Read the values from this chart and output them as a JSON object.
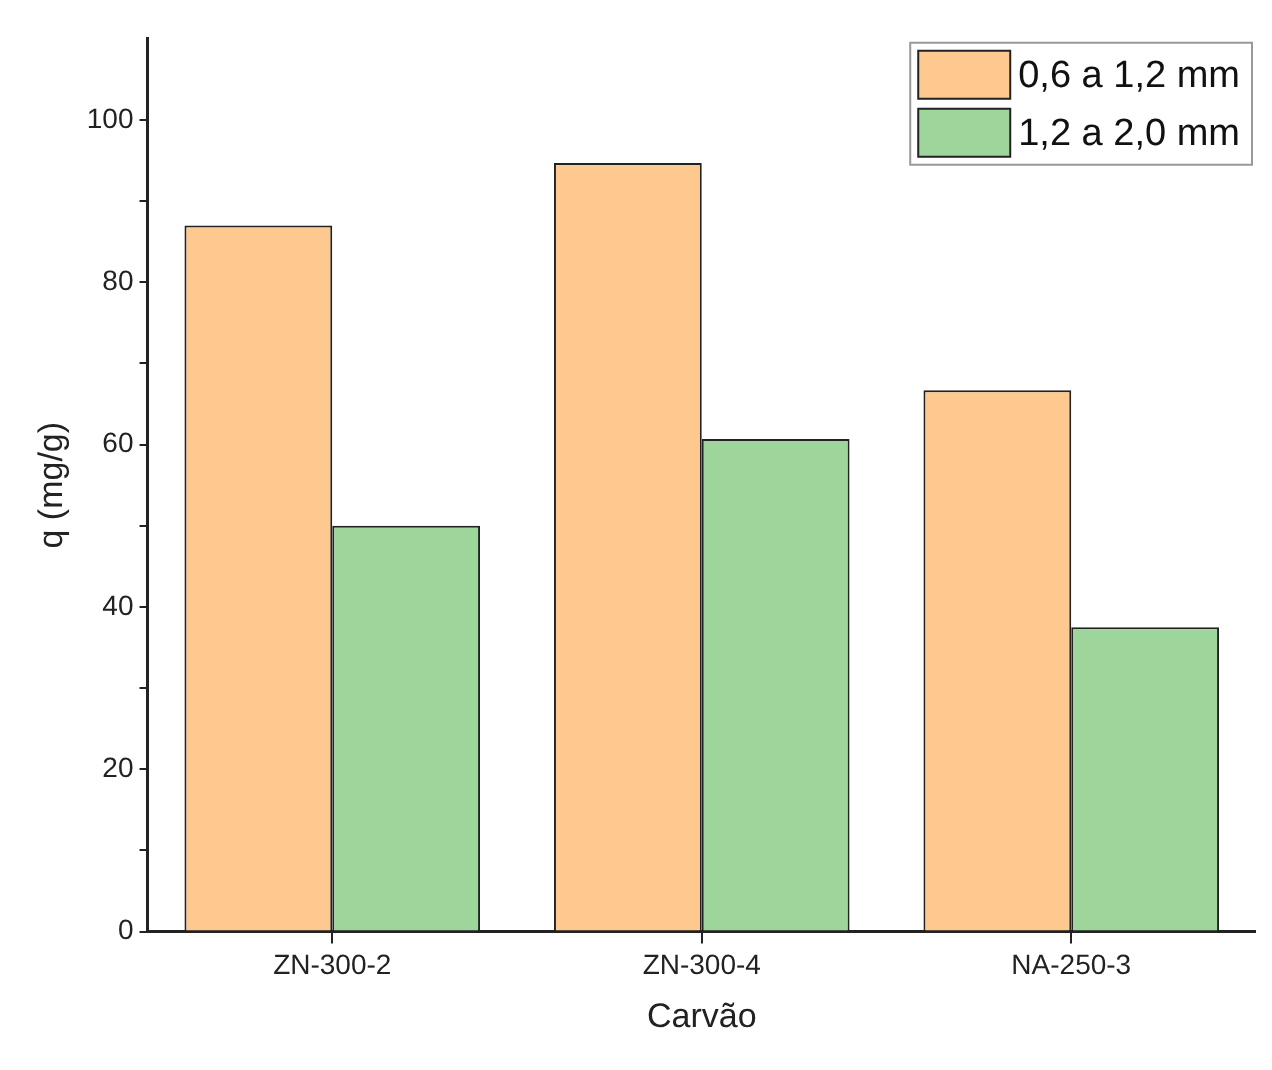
{
  "chart_data": {
    "type": "bar",
    "xlabel": "Carvão",
    "ylabel": "q (mg/g)",
    "categories": [
      "ZN-300-2",
      "ZN-300-4",
      "NA-250-3"
    ],
    "series": [
      {
        "name": "0,6 a 1,2 mm",
        "color": "#fdc98f",
        "values": [
          87.0,
          94.7,
          66.7
        ]
      },
      {
        "name": "1,2 a 2,0 mm",
        "color": "#9dd59b",
        "values": [
          50.0,
          60.7,
          37.5
        ]
      }
    ],
    "ylim": [
      0,
      110
    ],
    "yticks": [
      0,
      {
        "value": 10,
        "label": null
      },
      20,
      {
        "value": 30,
        "label": null
      },
      40,
      {
        "value": 50,
        "label": null
      },
      60,
      {
        "value": 70,
        "label": null
      },
      80,
      {
        "value": 90,
        "label": null
      },
      100
    ],
    "grid": false,
    "legend": "top right"
  }
}
